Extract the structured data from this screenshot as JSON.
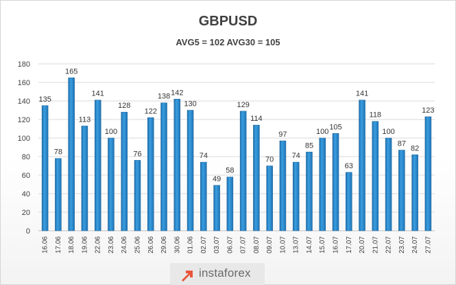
{
  "chart_data": {
    "type": "bar",
    "title": "GBPUSD",
    "subtitle": "AVG5 = 102 AVG30 = 105",
    "categories": [
      "16.06",
      "17.06",
      "18.06",
      "19.06",
      "22.06",
      "23.06",
      "24.06",
      "25.06",
      "26.06",
      "29.06",
      "30.06",
      "01.06",
      "02.07",
      "03.07",
      "06.07",
      "07.07",
      "08.07",
      "09.07",
      "10.07",
      "13.07",
      "14.07",
      "15.07",
      "16.07",
      "17.07",
      "20.07",
      "21.07",
      "22.07",
      "23.07",
      "24.07",
      "27.07"
    ],
    "values": [
      135,
      78,
      165,
      113,
      141,
      100,
      128,
      76,
      122,
      138,
      142,
      130,
      74,
      49,
      58,
      129,
      114,
      70,
      97,
      74,
      85,
      100,
      105,
      63,
      141,
      118,
      100,
      87,
      82,
      123
    ],
    "ylim": [
      0,
      180
    ],
    "yticks": [
      0,
      20,
      40,
      60,
      80,
      100,
      120,
      140,
      160,
      180
    ],
    "grid": true,
    "bar_color": "#2e8fd2"
  },
  "logo": {
    "text": "instaforex",
    "icon": "instaforex-arrow-icon",
    "color": "#e8553a"
  }
}
